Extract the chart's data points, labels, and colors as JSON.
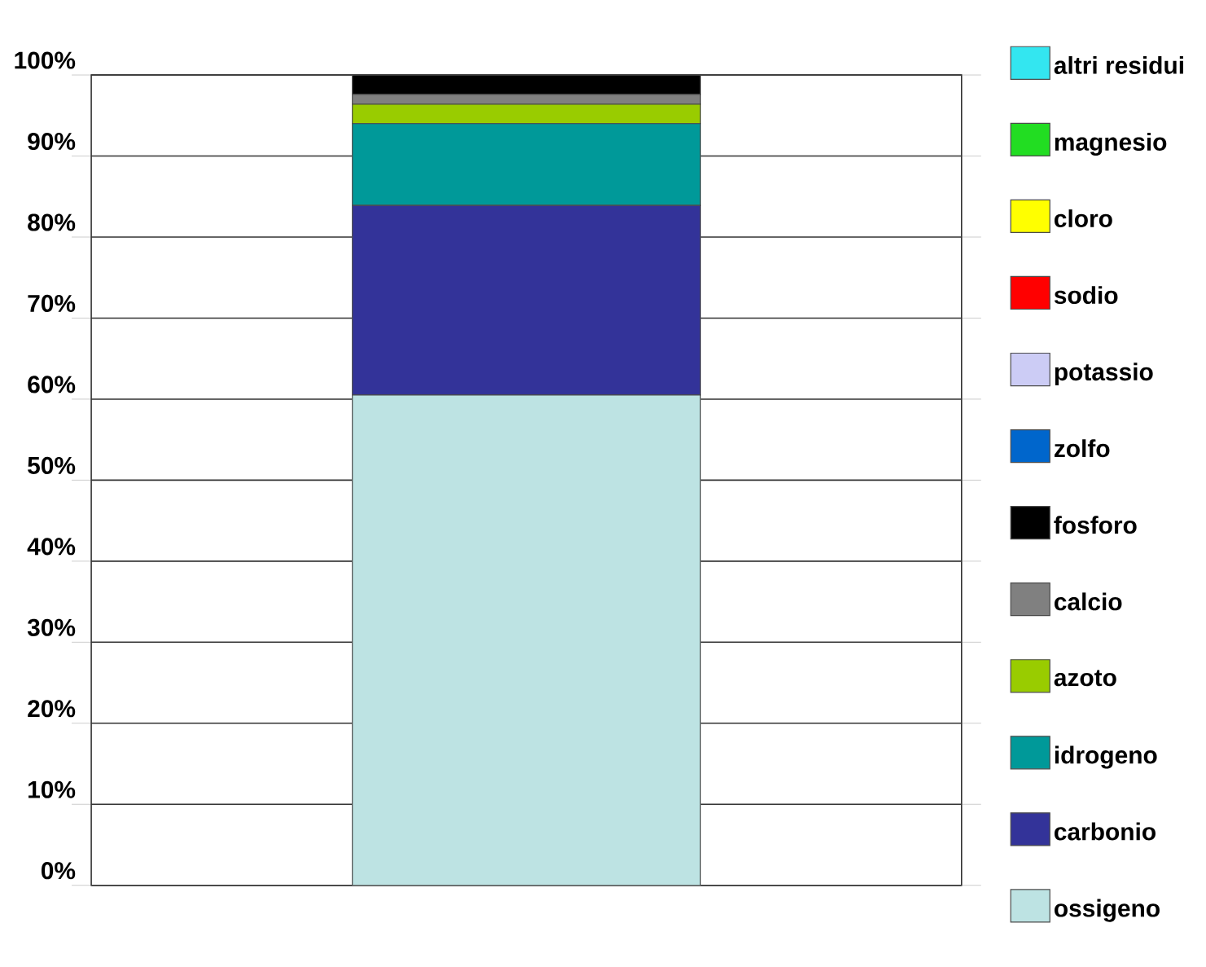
{
  "chart_data": {
    "type": "bar",
    "stacked": true,
    "categories": [
      null
    ],
    "series": [
      {
        "name": "ossigeno",
        "color": "#bde3e3",
        "values": [
          60.5
        ]
      },
      {
        "name": "carbonio",
        "color": "#333399",
        "values": [
          23.4
        ]
      },
      {
        "name": "idrogeno",
        "color": "#009999",
        "values": [
          10.1
        ]
      },
      {
        "name": "azoto",
        "color": "#99cc00",
        "values": [
          2.4
        ]
      },
      {
        "name": "calcio",
        "color": "#808080",
        "values": [
          1.2
        ]
      },
      {
        "name": "fosforo",
        "color": "#000000",
        "values": [
          2.4
        ]
      },
      {
        "name": "zolfo",
        "color": "#0066cc",
        "values": [
          null
        ]
      },
      {
        "name": "potassio",
        "color": "#ccccf5",
        "values": [
          null
        ]
      },
      {
        "name": "sodio",
        "color": "#ff0000",
        "values": [
          null
        ]
      },
      {
        "name": "cloro",
        "color": "#ffff00",
        "values": [
          null
        ]
      },
      {
        "name": "magnesio",
        "color": "#22dd22",
        "values": [
          null
        ]
      },
      {
        "name": "altri residui",
        "color": "#33e6f0",
        "values": [
          null
        ]
      }
    ],
    "ylim": [
      0,
      100
    ],
    "yticks": [
      {
        "value": 0,
        "label": "0%"
      },
      {
        "value": 10,
        "label": "10%"
      },
      {
        "value": 20,
        "label": "20%"
      },
      {
        "value": 30,
        "label": "30%"
      },
      {
        "value": 40,
        "label": "40%"
      },
      {
        "value": 50,
        "label": "50%"
      },
      {
        "value": 60,
        "label": "60%"
      },
      {
        "value": 70,
        "label": "70%"
      },
      {
        "value": 80,
        "label": "80%"
      },
      {
        "value": 90,
        "label": "90%"
      },
      {
        "value": 100,
        "label": "100%"
      }
    ],
    "grid": "y",
    "legend": "right"
  }
}
